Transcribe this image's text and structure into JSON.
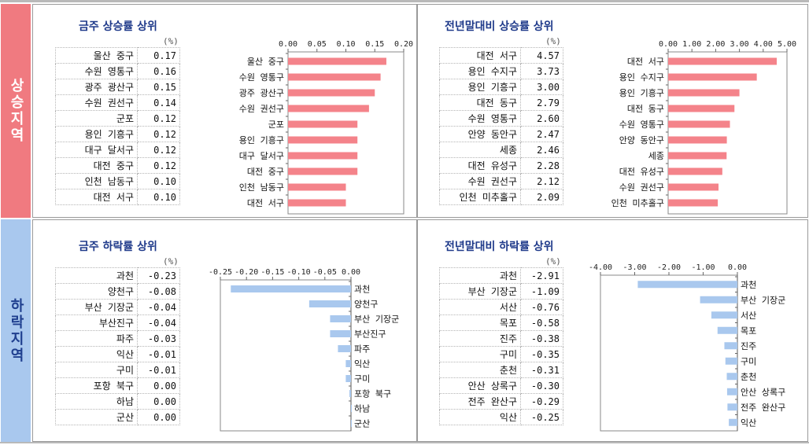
{
  "side_labels": {
    "rise": "상승지역",
    "fall": "하락지역"
  },
  "colors": {
    "rise": "#f4838a",
    "fall": "#a9c8ee",
    "title": "#1f3a8a"
  },
  "panels": [
    {
      "title": "금주 상승률 상위",
      "unit": "(%)",
      "rows": [
        {
          "name": "울산 중구",
          "value": "0.17"
        },
        {
          "name": "수원 영통구",
          "value": "0.16"
        },
        {
          "name": "광주 광산구",
          "value": "0.15"
        },
        {
          "name": "수원 권선구",
          "value": "0.14"
        },
        {
          "name": "군포",
          "value": "0.12"
        },
        {
          "name": "용인 기흥구",
          "value": "0.12"
        },
        {
          "name": "대구 달서구",
          "value": "0.12"
        },
        {
          "name": "대전 중구",
          "value": "0.12"
        },
        {
          "name": "인천 남동구",
          "value": "0.10"
        },
        {
          "name": "대전 서구",
          "value": "0.10"
        }
      ],
      "chart_data": {
        "type": "bar",
        "orientation": "horizontal",
        "categories": [
          "울산 중구",
          "수원 영통구",
          "광주 광산구",
          "수원 권선구",
          "군포",
          "용인 기흥구",
          "대구 달서구",
          "대전 중구",
          "인천 남동구",
          "대전 서구"
        ],
        "values": [
          0.17,
          0.16,
          0.15,
          0.14,
          0.12,
          0.12,
          0.12,
          0.12,
          0.1,
          0.1
        ],
        "xlim": [
          0,
          0.2
        ],
        "ticks": [
          "0.00",
          "0.05",
          "0.10",
          "0.15",
          "0.20"
        ],
        "axis_position": "top",
        "labels_side": "left",
        "color": "#f4838a"
      }
    },
    {
      "title": "전년말대비 상승률 상위",
      "unit": "(%)",
      "rows": [
        {
          "name": "대전 서구",
          "value": "4.57"
        },
        {
          "name": "용인 수지구",
          "value": "3.73"
        },
        {
          "name": "용인 기흥구",
          "value": "3.00"
        },
        {
          "name": "대전 동구",
          "value": "2.79"
        },
        {
          "name": "수원 영통구",
          "value": "2.60"
        },
        {
          "name": "안양 동안구",
          "value": "2.47"
        },
        {
          "name": "세종",
          "value": "2.46"
        },
        {
          "name": "대전 유성구",
          "value": "2.28"
        },
        {
          "name": "수원 권선구",
          "value": "2.12"
        },
        {
          "name": "인천 미추홀구",
          "value": "2.09"
        }
      ],
      "chart_data": {
        "type": "bar",
        "orientation": "horizontal",
        "categories": [
          "대전 서구",
          "용인 수지구",
          "용인 기흥구",
          "대전 동구",
          "수원 영통구",
          "안양 동안구",
          "세종",
          "대전 유성구",
          "수원 권선구",
          "인천 미추홀구"
        ],
        "values": [
          4.57,
          3.73,
          3.0,
          2.79,
          2.6,
          2.47,
          2.46,
          2.28,
          2.12,
          2.09
        ],
        "xlim": [
          0,
          5
        ],
        "ticks": [
          "0.00",
          "1.00",
          "2.00",
          "3.00",
          "4.00",
          "5.00"
        ],
        "axis_position": "top",
        "labels_side": "left",
        "color": "#f4838a"
      }
    },
    {
      "title": "금주 하락률 상위",
      "unit": "(%)",
      "rows": [
        {
          "name": "과천",
          "value": "-0.23"
        },
        {
          "name": "양천구",
          "value": "-0.08"
        },
        {
          "name": "부산 기장군",
          "value": "-0.04"
        },
        {
          "name": "부산진구",
          "value": "-0.04"
        },
        {
          "name": "파주",
          "value": "-0.03"
        },
        {
          "name": "익산",
          "value": "-0.01"
        },
        {
          "name": "구미",
          "value": "-0.01"
        },
        {
          "name": "포항 북구",
          "value": "0.00"
        },
        {
          "name": "하남",
          "value": "0.00"
        },
        {
          "name": "군산",
          "value": "0.00"
        }
      ],
      "chart_data": {
        "type": "bar",
        "orientation": "horizontal",
        "categories": [
          "과천",
          "양천구",
          "부산 기장군",
          "부산진구",
          "파주",
          "익산",
          "구미",
          "포항 북구",
          "하남",
          "군산"
        ],
        "values": [
          -0.23,
          -0.08,
          -0.04,
          -0.04,
          -0.025,
          -0.01,
          -0.01,
          -0.003,
          0.0,
          0.0
        ],
        "xlim": [
          -0.25,
          0
        ],
        "ticks": [
          "-0.25",
          "-0.20",
          "-0.15",
          "-0.10",
          "-0.05",
          "0.00"
        ],
        "axis_position": "top",
        "labels_side": "right",
        "color": "#a9c8ee"
      }
    },
    {
      "title": "전년말대비 하락률 상위",
      "unit": "(%)",
      "rows": [
        {
          "name": "과천",
          "value": "-2.91"
        },
        {
          "name": "부산 기장군",
          "value": "-1.09"
        },
        {
          "name": "서산",
          "value": "-0.76"
        },
        {
          "name": "목포",
          "value": "-0.58"
        },
        {
          "name": "진주",
          "value": "-0.38"
        },
        {
          "name": "구미",
          "value": "-0.35"
        },
        {
          "name": "춘천",
          "value": "-0.31"
        },
        {
          "name": "안산 상록구",
          "value": "-0.30"
        },
        {
          "name": "전주 완산구",
          "value": "-0.29"
        },
        {
          "name": "익산",
          "value": "-0.25"
        }
      ],
      "chart_data": {
        "type": "bar",
        "orientation": "horizontal",
        "categories": [
          "과천",
          "부산 기장군",
          "서산",
          "목포",
          "진주",
          "구미",
          "춘천",
          "안산 상록구",
          "전주 완산구",
          "익산"
        ],
        "values": [
          -2.91,
          -1.09,
          -0.76,
          -0.58,
          -0.38,
          -0.35,
          -0.31,
          -0.3,
          -0.29,
          -0.25
        ],
        "xlim": [
          -4,
          0
        ],
        "ticks": [
          "-4.00",
          "-3.00",
          "-2.00",
          "-1.00",
          "0.00"
        ],
        "axis_position": "top",
        "labels_side": "right",
        "color": "#a9c8ee"
      }
    }
  ]
}
